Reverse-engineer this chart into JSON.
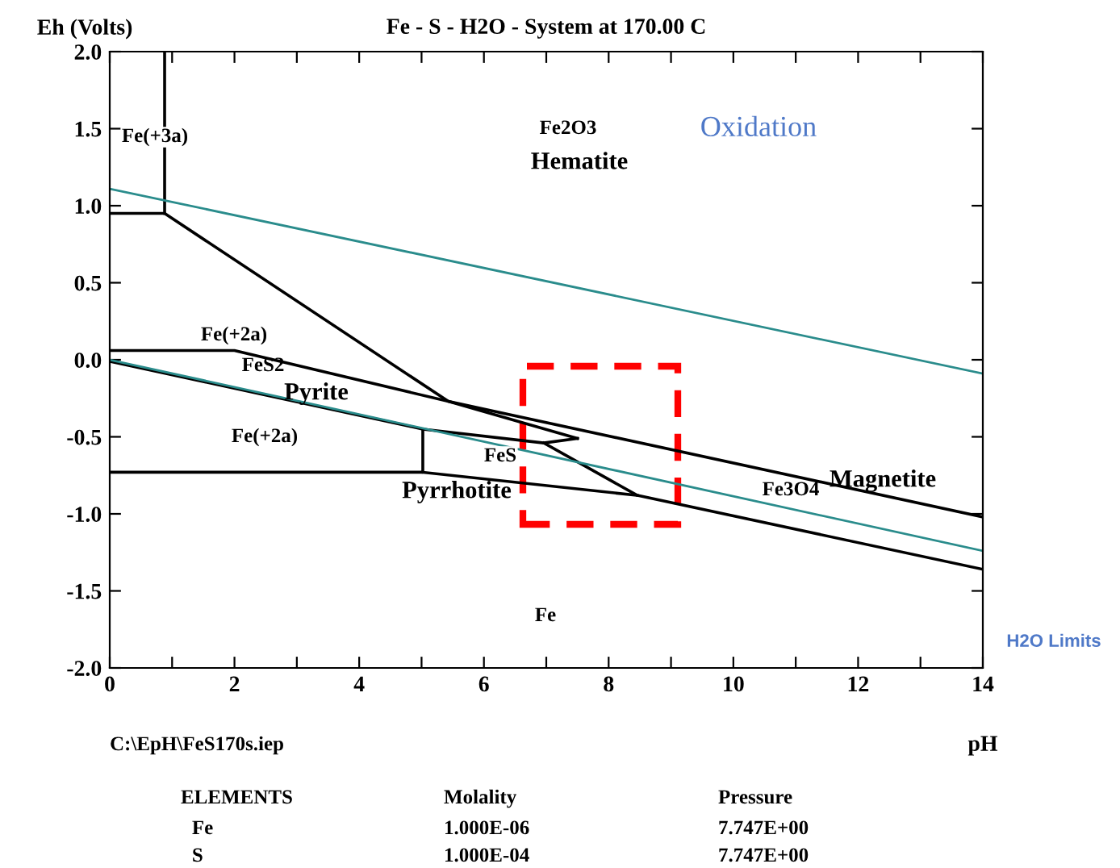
{
  "chart_data": {
    "type": "line",
    "title": "Fe - S - H2O - System at 170.00 C",
    "xlabel": "pH",
    "ylabel": "Eh (Volts)",
    "xlim": [
      0,
      14
    ],
    "ylim": [
      -2.0,
      2.0
    ],
    "xticks": [
      0,
      {
        "value": 1,
        "label": null
      },
      2,
      {
        "value": 3,
        "label": null
      },
      4,
      {
        "value": 5,
        "label": null
      },
      6,
      {
        "value": 7,
        "label": null
      },
      8,
      {
        "value": 9,
        "label": null
      },
      10,
      {
        "value": 11,
        "label": null
      },
      12,
      {
        "value": 13,
        "label": null
      },
      14
    ],
    "yticks": [
      {
        "value": -2.0,
        "label": "-2.0"
      },
      {
        "value": -1.5,
        "label": "-1.5"
      },
      {
        "value": -1.0,
        "label": "-1.0"
      },
      {
        "value": -0.5,
        "label": "-0.5"
      },
      {
        "value": 0.0,
        "label": "0.0"
      },
      {
        "value": 0.5,
        "label": "0.5"
      },
      {
        "value": 1.0,
        "label": "1.0"
      },
      {
        "value": 1.5,
        "label": "1.5"
      },
      {
        "value": 2.0,
        "label": "2.0"
      }
    ],
    "grid": false,
    "legend": false,
    "marker": "none",
    "series": [
      {
        "color": "#000000",
        "x": [
          0.88,
          0.88
        ],
        "values": [
          2.0,
          0.95
        ]
      },
      {
        "color": "#000000",
        "x": [
          0,
          0.88,
          5.43,
          7.5
        ],
        "values": [
          0.95,
          0.95,
          -0.27,
          -0.51
        ]
      },
      {
        "color": "#000000",
        "x": [
          0,
          2.0,
          5.43,
          14
        ],
        "values": [
          0.06,
          0.06,
          -0.27,
          -1.02
        ]
      },
      {
        "color": "#000000",
        "x": [
          0,
          5.02,
          6.96,
          7.5
        ],
        "values": [
          -0.01,
          -0.45,
          -0.54,
          -0.51
        ]
      },
      {
        "color": "#000000",
        "x": [
          6.96,
          8.46,
          14
        ],
        "values": [
          -0.54,
          -0.88,
          -1.36
        ]
      },
      {
        "color": "#000000",
        "x": [
          0,
          5.02,
          5.02
        ],
        "values": [
          -0.73,
          -0.73,
          -0.45
        ]
      },
      {
        "color": "#000000",
        "x": [
          5.02,
          8.46
        ],
        "values": [
          -0.73,
          -0.88
        ]
      },
      {
        "color": "#2a8c8c",
        "x": [
          0,
          14
        ],
        "values": [
          1.11,
          -0.09
        ]
      },
      {
        "color": "#2a8c8c",
        "x": [
          0,
          14
        ],
        "values": [
          0.0,
          -1.24
        ]
      }
    ],
    "annotations": [
      "Fe(+3a)",
      "Fe2O3",
      "Hematite",
      "Oxidation",
      "Fe(+2a)",
      "FeS2",
      "Pyrite",
      "Fe(+2a)",
      "FeS",
      "Pyrrhotite",
      "Fe3O4",
      "Magnetite",
      "Fe",
      "H2O Limits",
      "C:\\EpH\\FeS170s.iep",
      "ELEMENTS",
      "Molality",
      "Pressure",
      "Fe",
      "1.000E-06",
      "7.747E+00",
      "S",
      "1.000E-04",
      "7.747E+00"
    ]
  }
}
